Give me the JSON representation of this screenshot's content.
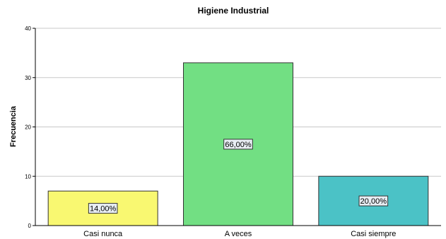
{
  "chart_data": {
    "type": "bar",
    "title": "Higiene Industrial",
    "xlabel": "",
    "ylabel": "Frecuencia",
    "categories": [
      "Casi nunca",
      "A veces",
      "Casi siempre"
    ],
    "values": [
      7,
      33,
      10
    ],
    "data_labels": [
      "14,00%",
      "66,00%",
      "20,00%"
    ],
    "colors": [
      "#f9f871",
      "#72df83",
      "#4bc2c6"
    ],
    "ylim": [
      0,
      40
    ],
    "yticks": [
      "0",
      "10",
      "20",
      "30",
      "40"
    ],
    "grid": true,
    "legend": "none"
  }
}
